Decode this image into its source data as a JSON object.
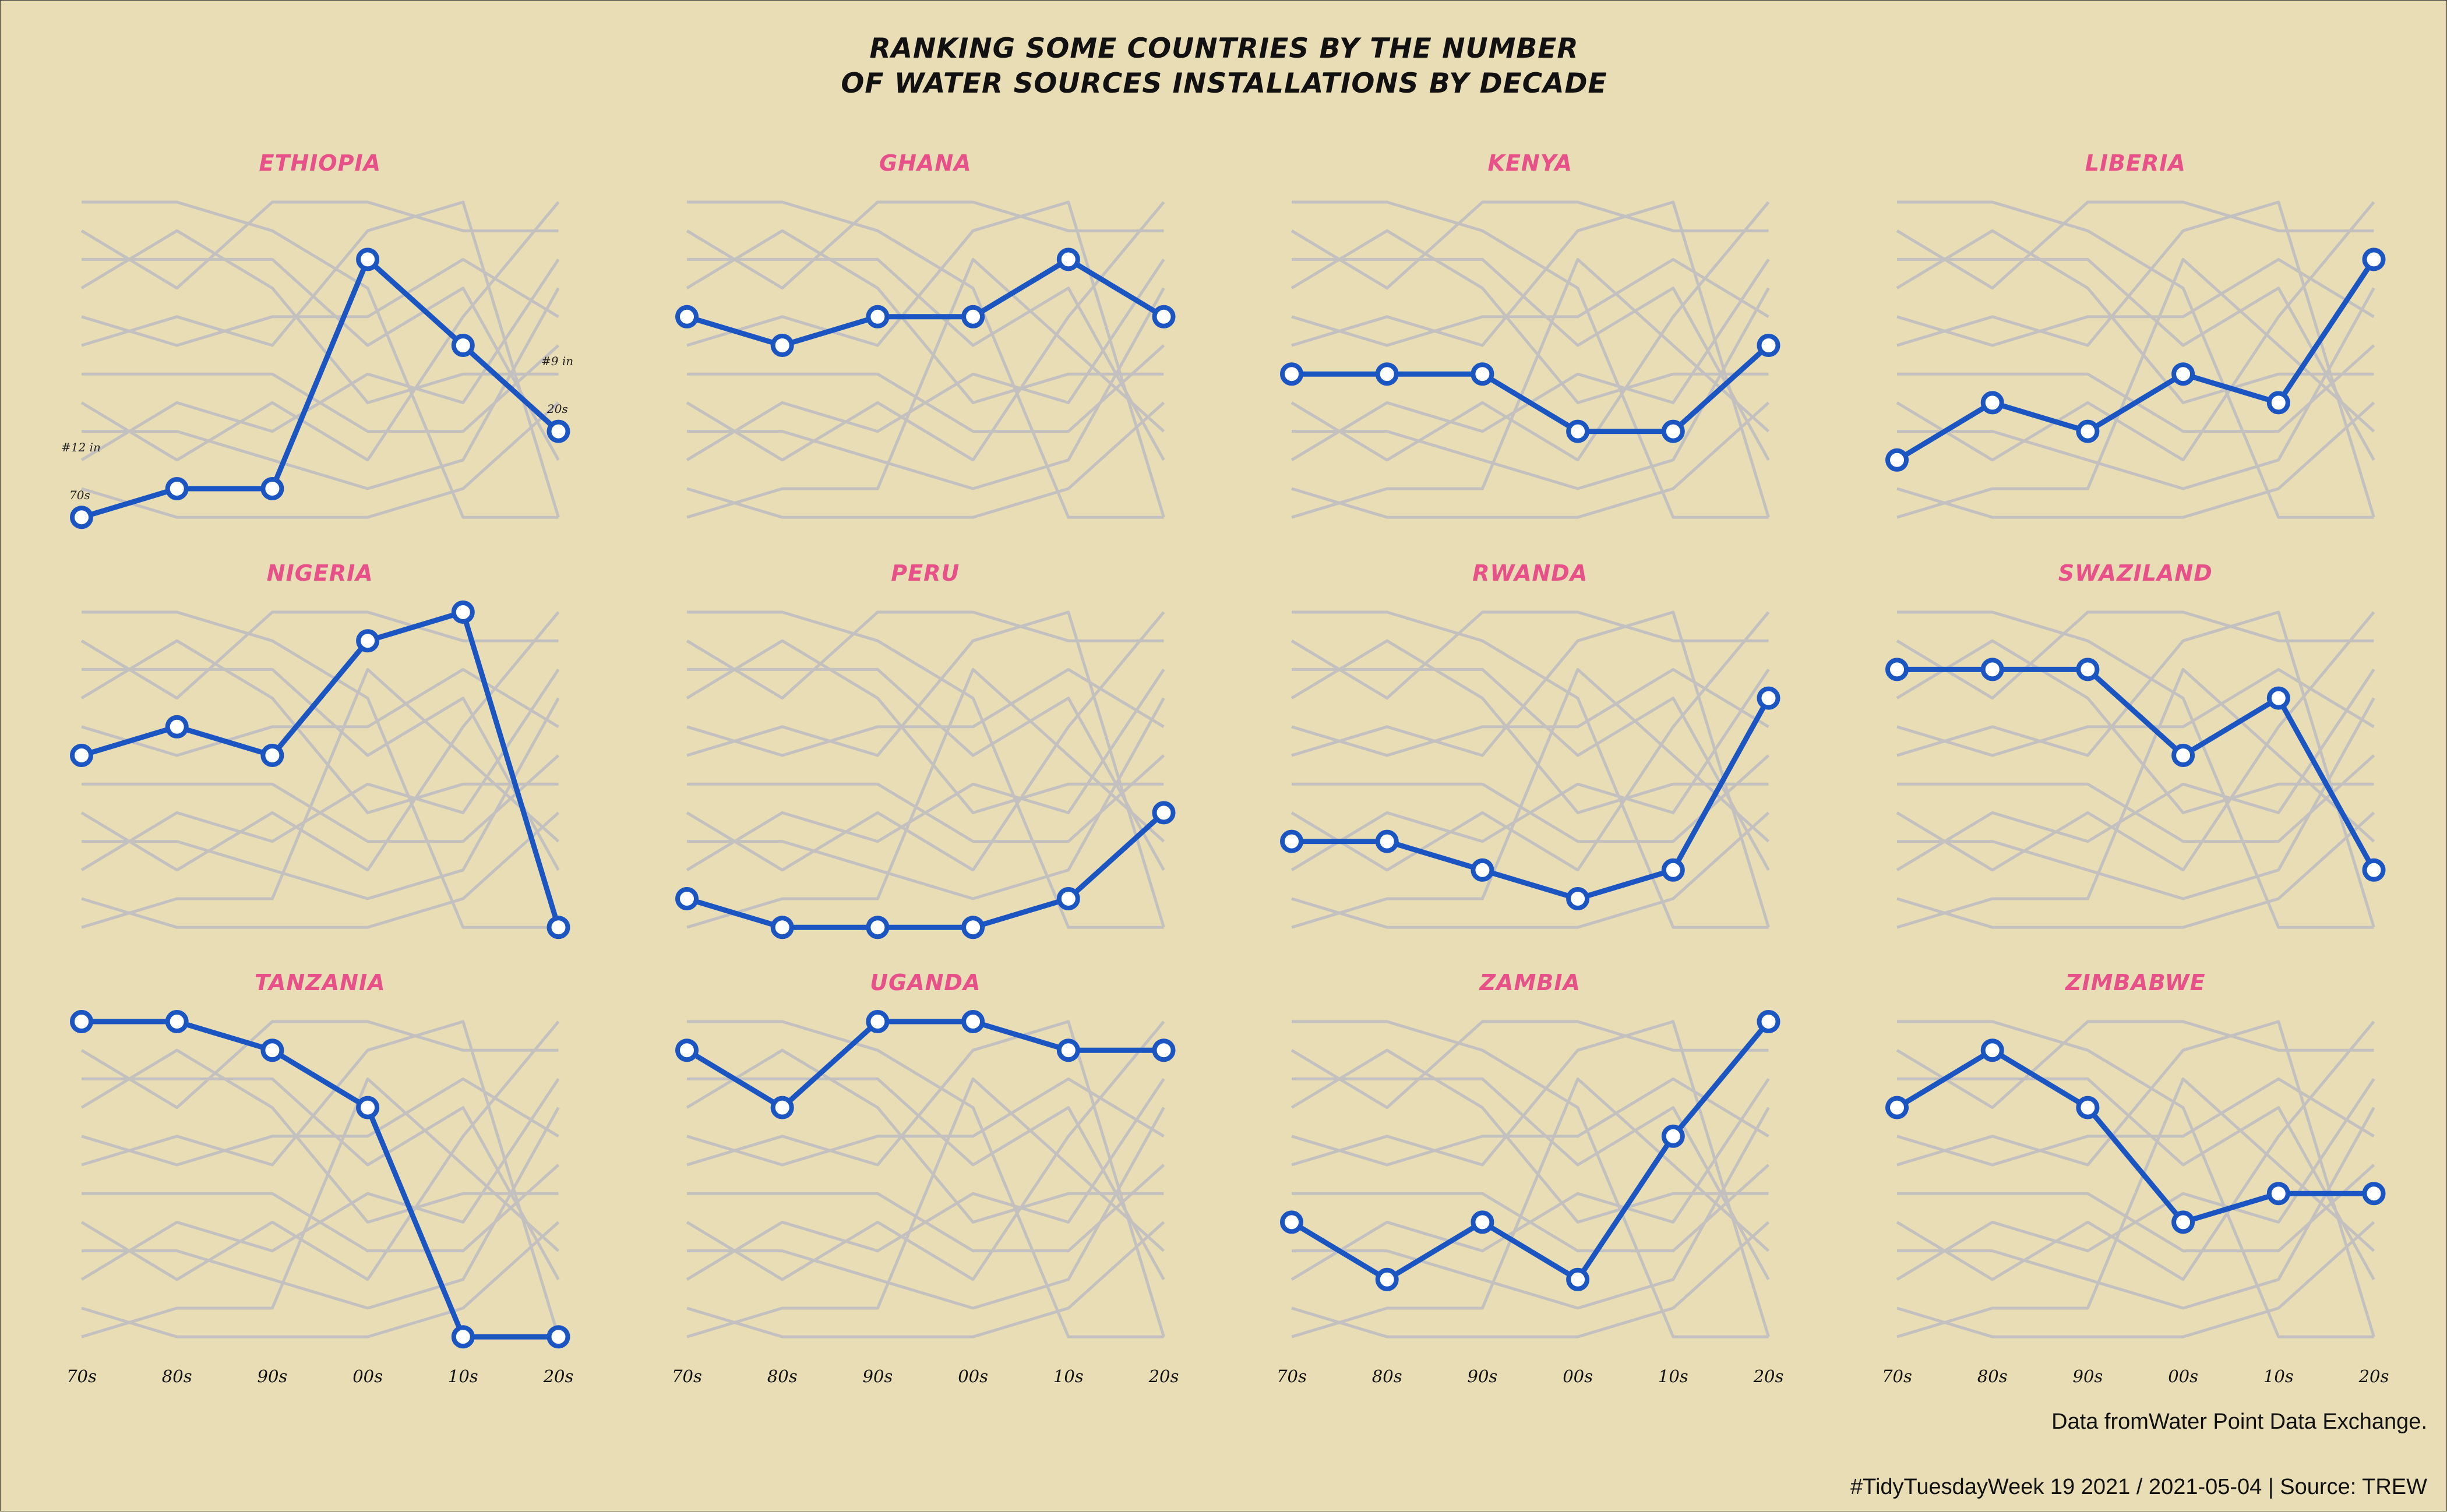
{
  "title": [
    "RANKING SOME COUNTRIES BY THE NUMBER",
    "OF WATER SOURCES INSTALLATIONS BY DECADE"
  ],
  "caption_source": "Data fromWater Point Data Exchange.",
  "caption_tag": "#TidyTuesdayWeek 19 2021 / 2021-05-04 | Source: TREW",
  "colors": {
    "background": "#e8ddb5",
    "highlight": "#1a55c2",
    "context": "#c3c1bf",
    "country_title": "#e8508a"
  },
  "annotations": {
    "left": "#12 in",
    "left_sub": "70s",
    "right": "#9 in",
    "right_sub": "20s"
  },
  "chart_data": {
    "type": "line",
    "rank_scale": "rank 1 (top) to 12 (bottom), one line per country",
    "decades": [
      "70s",
      "80s",
      "90s",
      "00s",
      "10s",
      "20s"
    ],
    "series": [
      {
        "name": "ETHIOPIA",
        "ranks": [
          12,
          11,
          11,
          3,
          6,
          9
        ]
      },
      {
        "name": "GHANA",
        "ranks": [
          5,
          6,
          5,
          5,
          3,
          5
        ]
      },
      {
        "name": "KENYA",
        "ranks": [
          7,
          7,
          7,
          9,
          9,
          6
        ]
      },
      {
        "name": "LIBERIA",
        "ranks": [
          10,
          8,
          9,
          7,
          8,
          3
        ]
      },
      {
        "name": "NIGERIA",
        "ranks": [
          6,
          5,
          6,
          2,
          1,
          12
        ]
      },
      {
        "name": "PERU",
        "ranks": [
          11,
          12,
          12,
          12,
          11,
          8
        ]
      },
      {
        "name": "RWANDA",
        "ranks": [
          9,
          9,
          10,
          11,
          10,
          4
        ]
      },
      {
        "name": "SWAZILAND",
        "ranks": [
          3,
          3,
          3,
          6,
          4,
          10
        ]
      },
      {
        "name": "TANZANIA",
        "ranks": [
          1,
          1,
          2,
          4,
          12,
          12
        ]
      },
      {
        "name": "UGANDA",
        "ranks": [
          2,
          4,
          1,
          1,
          2,
          2
        ]
      },
      {
        "name": "ZAMBIA",
        "ranks": [
          8,
          10,
          8,
          10,
          5,
          1
        ]
      },
      {
        "name": "ZIMBABWE",
        "ranks": [
          4,
          2,
          4,
          8,
          7,
          7
        ]
      }
    ]
  }
}
